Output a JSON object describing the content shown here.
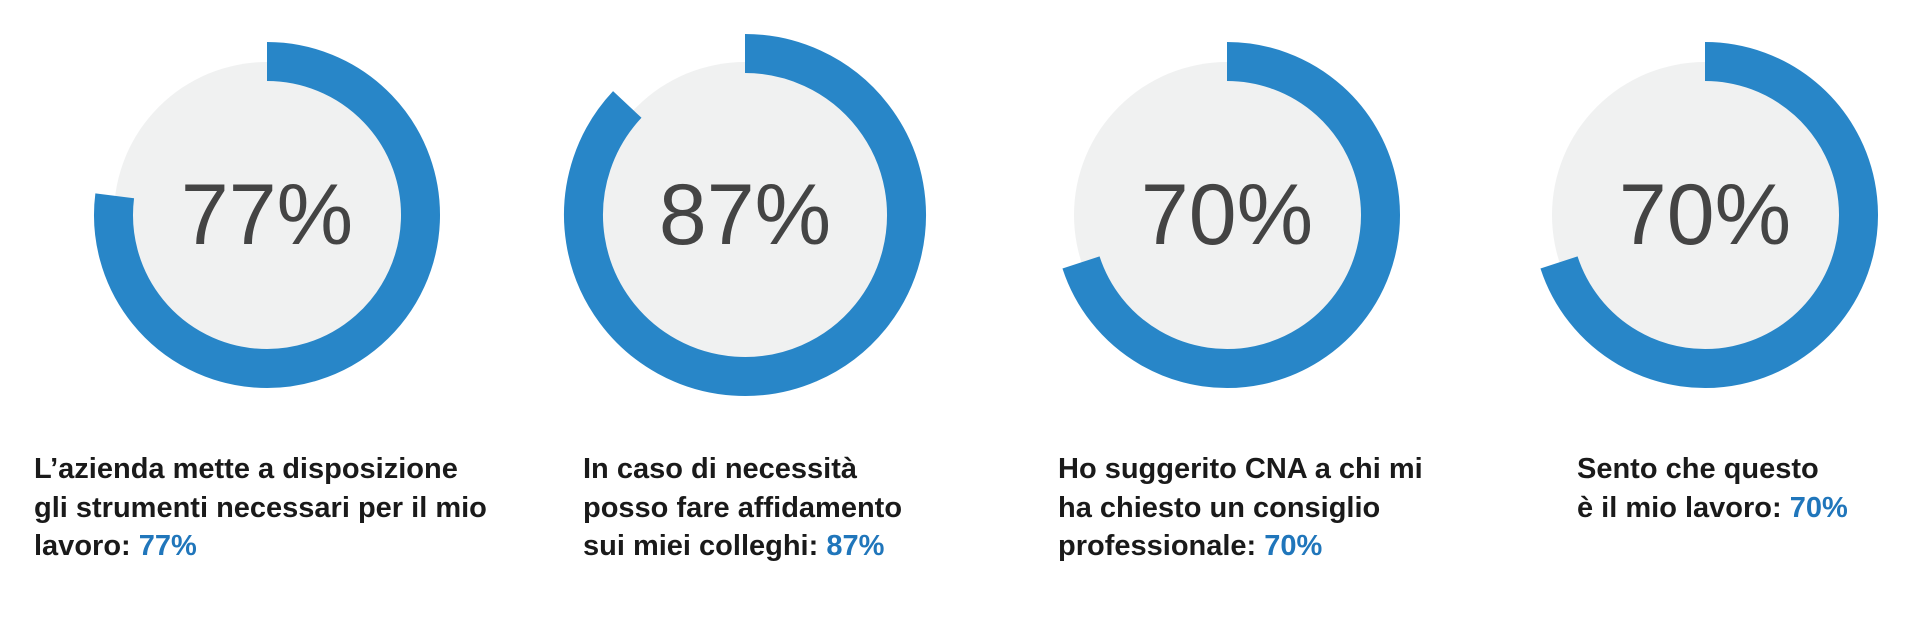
{
  "chart_data": [
    {
      "type": "donut",
      "value": 77,
      "value_label": "77%",
      "ylim": [
        0,
        100
      ],
      "color": "#2886c8",
      "track_color": "#f0f1f1",
      "caption_lines": [
        "L’azienda mette a disposizione",
        "gli strumenti necessari per il mio",
        "lavoro:"
      ]
    },
    {
      "type": "donut",
      "value": 87,
      "value_label": "87%",
      "ylim": [
        0,
        100
      ],
      "color": "#2886c8",
      "track_color": "#f0f1f1",
      "caption_lines": [
        "In caso di necessità",
        "posso fare affidamento",
        "sui miei colleghi:"
      ]
    },
    {
      "type": "donut",
      "value": 70,
      "value_label": "70%",
      "ylim": [
        0,
        100
      ],
      "color": "#2886c8",
      "track_color": "#f0f1f1",
      "caption_lines": [
        "Ho suggerito CNA a chi mi",
        "ha chiesto un consiglio",
        "professionale:"
      ]
    },
    {
      "type": "donut",
      "value": 70,
      "value_label": "70%",
      "ylim": [
        0,
        100
      ],
      "color": "#2886c8",
      "track_color": "#f0f1f1",
      "caption_lines": [
        "Sento che questo",
        "è il mio lavoro:"
      ]
    }
  ]
}
